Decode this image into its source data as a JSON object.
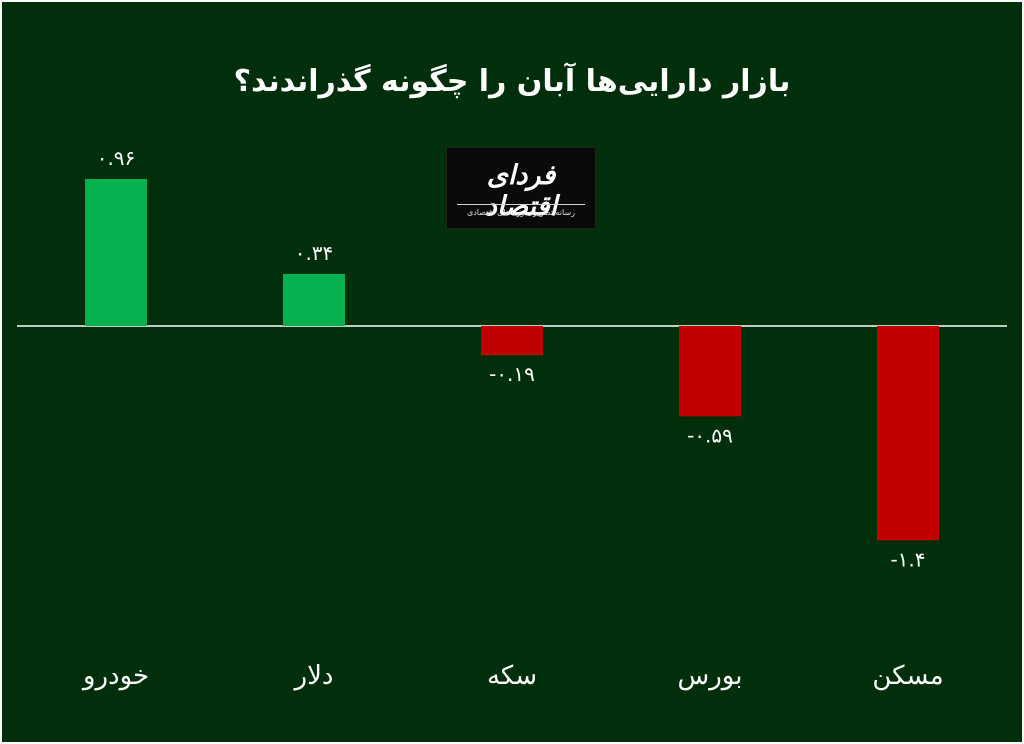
{
  "title": "بازار دارایی‌ها آبان را چگونه گذراندند؟",
  "logo": {
    "name": "فردای اقتصاد",
    "tagline": "رسانه تصویری روندهای اقتصادی"
  },
  "colors": {
    "background": "#012f0b",
    "positive": "#05b04f",
    "negative": "#c00000",
    "axis": "#ffffff"
  },
  "chart_data": {
    "type": "bar",
    "categories": [
      "خودرو",
      "دلار",
      "سکه",
      "بورس",
      "مسکن"
    ],
    "values": [
      0.96,
      0.34,
      -0.19,
      -0.59,
      -1.4
    ],
    "value_labels": [
      "۰.۹۶",
      "۰.۳۴",
      "-۰.۱۹",
      "-۰.۵۹",
      "-۱.۴"
    ],
    "title": "بازار دارایی‌ها آبان را چگونه گذراندند؟",
    "xlabel": "",
    "ylabel": "",
    "ylim": [
      -1.4,
      0.96
    ],
    "grid": false,
    "legend": "none"
  }
}
